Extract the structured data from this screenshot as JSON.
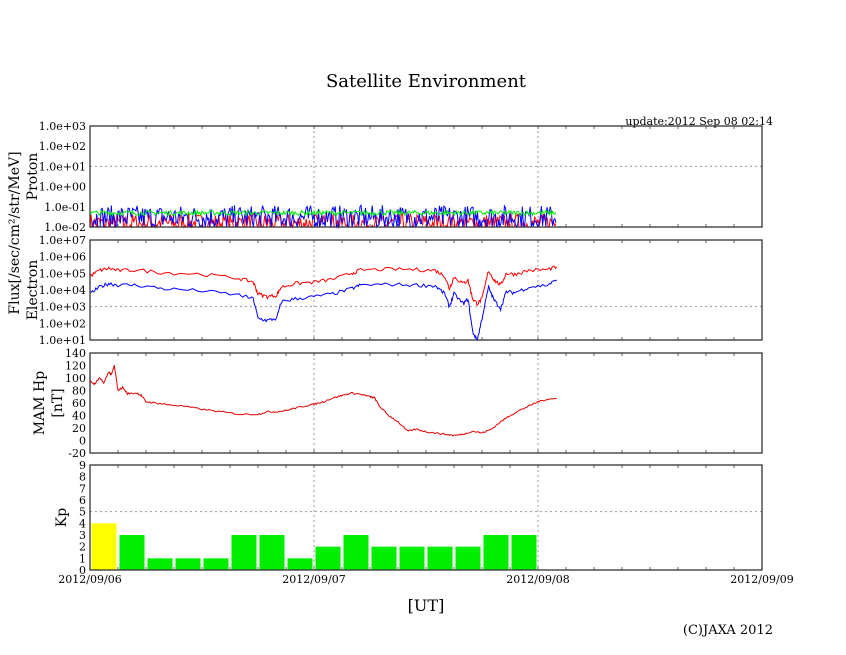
{
  "chart_data": {
    "title": "Satellite Environment",
    "update": "update:2012 Sep 08 02:14",
    "copyright": "(C)JAXA 2012",
    "xlabel": "[UT]",
    "x_ticks": [
      "2012/09/06",
      "2012/09/07",
      "2012/09/08",
      "2012/09/09"
    ],
    "x_range_hours": [
      0,
      72
    ],
    "flux_label": "Flux[/sec/cm²/str/MeV]",
    "panels": [
      {
        "type": "line",
        "name": "proton",
        "ylabel": "Proton",
        "yscale": "log",
        "ylim": [
          0.01,
          1000
        ],
        "y_ticks": [
          "1.0e-02",
          "1.0e-01",
          "1.0e+00",
          "1.0e+01",
          "1.0e+02",
          "1.0e+03"
        ],
        "grid_y": [
          10
        ],
        "series": [
          {
            "name": "proton-red",
            "color": "#ff0000",
            "level": 0.015,
            "spread": 0.5,
            "end_hour": 50
          },
          {
            "name": "proton-blue",
            "color": "#0000ff",
            "level": 0.03,
            "spread": 0.6,
            "end_hour": 50
          },
          {
            "name": "proton-green",
            "color": "#00ee00",
            "level": 0.05,
            "spread": 0.12,
            "end_hour": 50
          }
        ]
      },
      {
        "type": "line",
        "name": "electron",
        "ylabel": "Electron",
        "yscale": "log",
        "ylim": [
          10,
          10000000
        ],
        "y_ticks": [
          "1.0e+01",
          "1.0e+02",
          "1.0e+03",
          "1.0e+04",
          "1.0e+05",
          "1.0e+06",
          "1.0e+07"
        ],
        "grid_y": [
          1000
        ],
        "series": [
          {
            "name": "electron-red",
            "color": "#ff0000",
            "x": [
              0,
              1,
              2,
              3,
              5,
              8,
              12,
              16,
              17.5,
              18,
              19,
              20,
              20.5,
              22,
              24,
              26,
              28,
              29,
              32,
              35,
              37,
              38,
              38.5,
              39,
              40,
              40.5,
              41,
              41.5,
              42,
              42.7,
              43.3,
              44,
              44.6,
              45.5,
              47,
              49,
              50
            ],
            "y": [
              70000,
              150000,
              200000,
              150000,
              160000,
              110000,
              90000,
              50000,
              30000,
              6000,
              4000,
              5000,
              15000,
              25000,
              30000,
              45000,
              100000,
              160000,
              180000,
              170000,
              150000,
              70000,
              12000,
              60000,
              25000,
              40000,
              3000,
              1500,
              3000,
              150000,
              40000,
              20000,
              100000,
              90000,
              150000,
              170000,
              250000
            ]
          },
          {
            "name": "electron-blue",
            "color": "#0000ff",
            "x": [
              0,
              1,
              2,
              3,
              5,
              8,
              12,
              16,
              17.5,
              18,
              19,
              20,
              20.5,
              22,
              24,
              26,
              28,
              29,
              32,
              35,
              37,
              38,
              38.5,
              39,
              40,
              40.5,
              41,
              41.5,
              42,
              42.7,
              43.3,
              44,
              44.6,
              45.5,
              47,
              49,
              50
            ],
            "y": [
              6000,
              15000,
              25000,
              20000,
              20000,
              12000,
              9000,
              5000,
              3000,
              200,
              150,
              200,
              2000,
              3000,
              4000,
              6000,
              12000,
              20000,
              22000,
              20000,
              18000,
              6000,
              1000,
              6000,
              1500,
              3000,
              30,
              10,
              200,
              15000,
              2500,
              800,
              8000,
              7000,
              15000,
              20000,
              40000
            ]
          }
        ]
      },
      {
        "type": "line",
        "name": "mam-hp",
        "ylabel": "MAM Hp",
        "ylabel2": "[nT]",
        "yscale": "linear",
        "ylim": [
          -20,
          140
        ],
        "y_ticks": [
          "-20",
          "0",
          "20",
          "40",
          "60",
          "80",
          "100",
          "120",
          "140"
        ],
        "series": [
          {
            "name": "mam-hp-line",
            "color": "#e00000",
            "x": [
              0,
              0.5,
              1,
              1.5,
              2,
              2.3,
              2.6,
              3,
              3.5,
              4,
              5,
              5.5,
              6,
              7,
              8,
              10,
              12,
              14,
              16,
              18,
              19,
              20,
              21,
              22,
              23,
              24,
              25,
              26,
              27,
              28,
              29,
              30,
              30.5,
              31,
              32,
              33,
              34,
              35,
              36,
              37,
              38,
              39,
              40,
              41,
              42,
              43,
              44,
              45,
              46,
              47,
              48,
              49,
              50
            ],
            "y": [
              95,
              90,
              100,
              92,
              110,
              105,
              120,
              80,
              85,
              75,
              76,
              72,
              62,
              60,
              58,
              55,
              50,
              46,
              42,
              42,
              46,
              46,
              48,
              52,
              55,
              58,
              62,
              68,
              72,
              76,
              74,
              70,
              68,
              55,
              40,
              30,
              15,
              18,
              14,
              12,
              10,
              8,
              10,
              15,
              12,
              18,
              30,
              40,
              48,
              55,
              62,
              66,
              67
            ]
          }
        ]
      },
      {
        "type": "bar",
        "name": "kp",
        "ylabel": "Kp",
        "yscale": "linear",
        "ylim": [
          0,
          9
        ],
        "y_ticks": [
          "0",
          "1",
          "2",
          "3",
          "4",
          "5",
          "6",
          "7",
          "8",
          "9"
        ],
        "grid_y": [
          5
        ],
        "bin_hours": 3,
        "values": [
          4,
          3,
          1,
          1,
          1,
          3,
          3,
          1,
          2,
          3,
          2,
          2,
          2,
          2,
          3,
          3
        ],
        "colors": {
          "normal": "#00ee00",
          "elevated": "#ffff00"
        },
        "elevated_threshold": 4
      }
    ]
  }
}
